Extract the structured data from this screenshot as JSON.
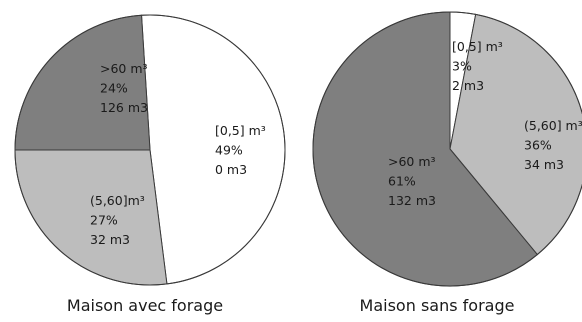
{
  "chart_data": [
    {
      "type": "pie",
      "title": "Maison avec forage",
      "slices": [
        {
          "label": "[0,5] m³",
          "percent": "49%",
          "volume": "0 m3",
          "value": 49,
          "color": "#ffffff"
        },
        {
          "label": "(5,60]m³",
          "percent": "27%",
          "volume": "32 m3",
          "value": 27,
          "color": "#bdbdbd"
        },
        {
          "label": ">60 m³",
          "percent": "24%",
          "volume": "126 m3",
          "value": 24,
          "color": "#7f7f7f"
        }
      ]
    },
    {
      "type": "pie",
      "title": "Maison sans forage",
      "slices": [
        {
          "label": "[0,5] m³",
          "percent": "3%",
          "volume": "2 m3",
          "value": 3,
          "color": "#ffffff"
        },
        {
          "label": "(5,60] m³",
          "percent": "36%",
          "volume": "34 m3",
          "value": 36,
          "color": "#bdbdbd"
        },
        {
          "label": ">60 m³",
          "percent": "61%",
          "volume": "132 m3",
          "value": 61,
          "color": "#7f7f7f"
        }
      ]
    }
  ]
}
